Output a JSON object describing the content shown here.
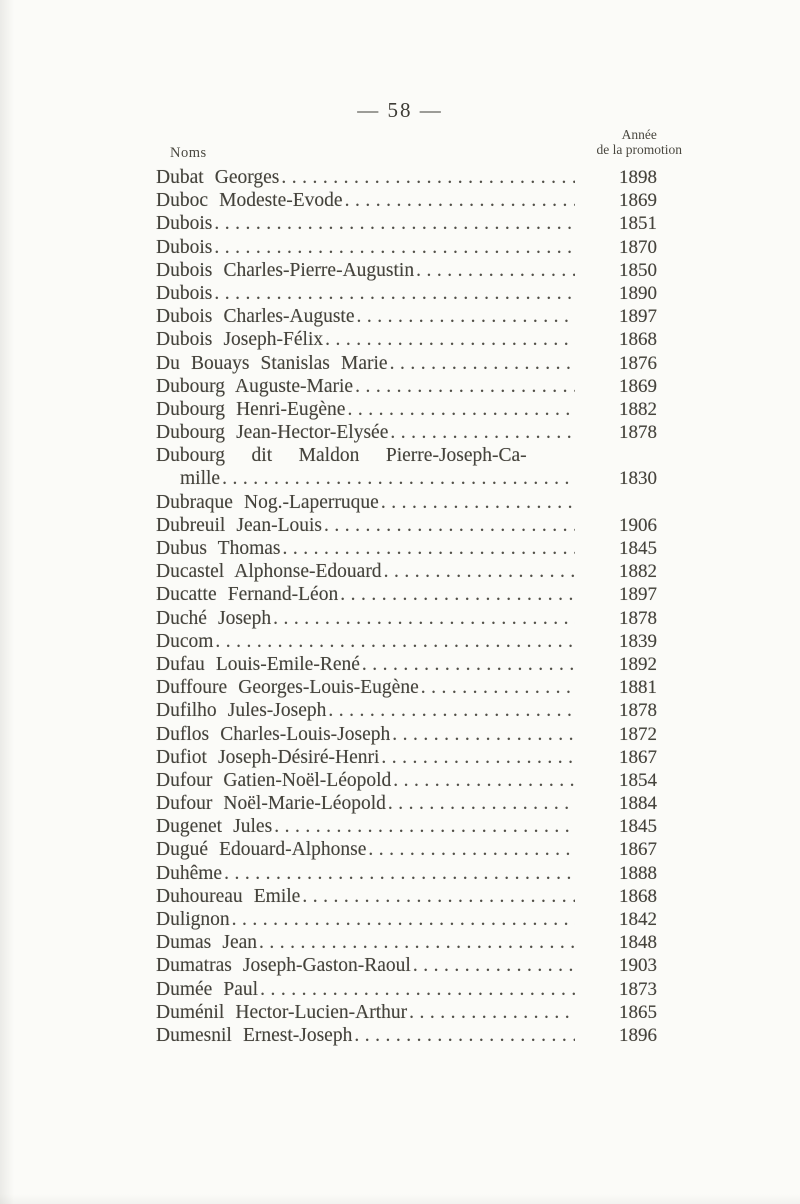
{
  "page": {
    "number_label": "— 58 —"
  },
  "table": {
    "header_noms": "Noms",
    "header_annee_line1": "Année",
    "header_annee_line2": "de la promotion",
    "leader_char": ".",
    "rows": [
      {
        "name": "Dubat Georges",
        "year": "1898"
      },
      {
        "name": "Duboc Modeste-Evode",
        "year": "1869"
      },
      {
        "name": "Dubois",
        "year": "1851"
      },
      {
        "name": "Dubois",
        "year": "1870"
      },
      {
        "name": "Dubois Charles-Pierre-Augustin",
        "year": "1850"
      },
      {
        "name": "Dubois",
        "year": "1890"
      },
      {
        "name": "Dubois Charles-Auguste",
        "year": "1897"
      },
      {
        "name": "Dubois Joseph-Félix",
        "year": "1868"
      },
      {
        "name": "Du Bouays Stanislas Marie",
        "year": "1876"
      },
      {
        "name": "Dubourg Auguste-Marie",
        "year": "1869"
      },
      {
        "name": "Dubourg Henri-Eugène",
        "year": "1882"
      },
      {
        "name": "Dubourg Jean-Hector-Elysée",
        "year": "1878"
      },
      {
        "name": "Dubourg dit Maldon Pierre-Joseph-Ca-",
        "year": "",
        "leader": false,
        "justify": true
      },
      {
        "name": "mille",
        "year": "1830",
        "indent": true
      },
      {
        "name": "Dubraque Nog.-Laperruque",
        "year": ""
      },
      {
        "name": "Dubreuil Jean-Louis",
        "year": "1906"
      },
      {
        "name": "Dubus Thomas",
        "year": "1845"
      },
      {
        "name": "Ducastel Alphonse-Edouard",
        "year": "1882"
      },
      {
        "name": "Ducatte Fernand-Léon",
        "year": "1897"
      },
      {
        "name": "Duché Joseph",
        "year": "1878"
      },
      {
        "name": "Ducom",
        "year": "1839"
      },
      {
        "name": "Dufau Louis-Emile-René",
        "year": "1892"
      },
      {
        "name": "Duffoure Georges-Louis-Eugène",
        "year": "1881"
      },
      {
        "name": "Dufilho Jules-Joseph",
        "year": "1878"
      },
      {
        "name": "Duflos Charles-Louis-Joseph",
        "year": "1872"
      },
      {
        "name": "Dufiot Joseph-Désiré-Henri",
        "year": "1867"
      },
      {
        "name": "Dufour Gatien-Noël-Léopold",
        "year": "1854"
      },
      {
        "name": "Dufour Noël-Marie-Léopold",
        "year": "1884"
      },
      {
        "name": "Dugenet Jules",
        "year": "1845"
      },
      {
        "name": "Dugué Edouard-Alphonse",
        "year": "1867"
      },
      {
        "name": "Duhême",
        "year": "1888"
      },
      {
        "name": "Duhoureau Emile",
        "year": "1868"
      },
      {
        "name": "Dulignon",
        "year": "1842"
      },
      {
        "name": "Dumas Jean",
        "year": "1848"
      },
      {
        "name": "Dumatras Joseph-Gaston-Raoul",
        "year": "1903"
      },
      {
        "name": "Dumée Paul",
        "year": "1873"
      },
      {
        "name": "Duménil Hector-Lucien-Arthur",
        "year": "1865"
      },
      {
        "name": "Dumesnil Ernest-Joseph",
        "year": "1896"
      }
    ]
  }
}
